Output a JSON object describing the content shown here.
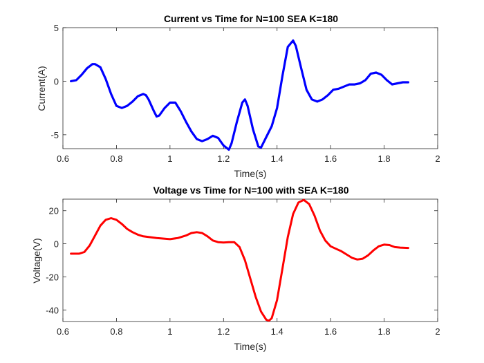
{
  "chart_data": [
    {
      "type": "line",
      "title": "Current vs Time for N=100 SEA K=180",
      "xlabel": "Time(s)",
      "ylabel": "Current(A)",
      "xlim": [
        0.6,
        2.0
      ],
      "ylim": [
        -6.3,
        5.0
      ],
      "xticks": [
        0.6,
        0.8,
        1.0,
        1.2,
        1.4,
        1.6,
        1.8,
        2.0
      ],
      "xtick_labels": [
        "0.6",
        "0.8",
        "1",
        "1.2",
        "1.4",
        "1.6",
        "1.8",
        "2"
      ],
      "yticks": [
        -5,
        0,
        5
      ],
      "ytick_labels": [
        "-5",
        "0",
        "5"
      ],
      "grid": false,
      "series": [
        {
          "color": "#0000ff",
          "x": [
            0.63,
            0.65,
            0.67,
            0.69,
            0.71,
            0.72,
            0.74,
            0.76,
            0.78,
            0.8,
            0.82,
            0.84,
            0.86,
            0.88,
            0.9,
            0.91,
            0.92,
            0.94,
            0.95,
            0.96,
            0.98,
            1.0,
            1.02,
            1.04,
            1.06,
            1.08,
            1.1,
            1.12,
            1.14,
            1.16,
            1.18,
            1.2,
            1.22,
            1.23,
            1.25,
            1.27,
            1.28,
            1.29,
            1.31,
            1.33,
            1.34,
            1.36,
            1.38,
            1.4,
            1.42,
            1.44,
            1.46,
            1.47,
            1.49,
            1.51,
            1.53,
            1.55,
            1.57,
            1.59,
            1.61,
            1.63,
            1.65,
            1.67,
            1.69,
            1.71,
            1.73,
            1.75,
            1.77,
            1.79,
            1.81,
            1.83,
            1.85,
            1.87,
            1.89
          ],
          "y": [
            0.0,
            0.1,
            0.6,
            1.2,
            1.6,
            1.6,
            1.3,
            0.2,
            -1.2,
            -2.3,
            -2.5,
            -2.3,
            -1.9,
            -1.4,
            -1.2,
            -1.3,
            -1.7,
            -2.8,
            -3.3,
            -3.2,
            -2.5,
            -2.0,
            -2.0,
            -2.8,
            -3.8,
            -4.7,
            -5.4,
            -5.6,
            -5.4,
            -5.1,
            -5.3,
            -6.0,
            -6.4,
            -5.8,
            -3.8,
            -2.0,
            -1.7,
            -2.3,
            -4.5,
            -6.1,
            -6.2,
            -5.2,
            -4.2,
            -2.5,
            0.5,
            3.2,
            3.8,
            3.3,
            1.2,
            -0.8,
            -1.7,
            -1.9,
            -1.7,
            -1.3,
            -0.8,
            -0.7,
            -0.5,
            -0.3,
            -0.3,
            -0.2,
            0.1,
            0.7,
            0.8,
            0.6,
            0.1,
            -0.3,
            -0.2,
            -0.1,
            -0.1
          ]
        }
      ]
    },
    {
      "type": "line",
      "title": "Voltage vs Time for N=100 with SEA K=180",
      "xlabel": "Time(s)",
      "ylabel": "Voltage(V)",
      "xlim": [
        0.6,
        2.0
      ],
      "ylim": [
        -47,
        27
      ],
      "xticks": [
        0.6,
        0.8,
        1.0,
        1.2,
        1.4,
        1.6,
        1.8,
        2.0
      ],
      "xtick_labels": [
        "0.6",
        "0.8",
        "1",
        "1.2",
        "1.4",
        "1.6",
        "1.8",
        "2"
      ],
      "yticks": [
        -40,
        -20,
        0,
        20
      ],
      "ytick_labels": [
        "-40",
        "-20",
        "0",
        "20"
      ],
      "grid": false,
      "series": [
        {
          "color": "#ff0000",
          "x": [
            0.63,
            0.66,
            0.68,
            0.7,
            0.72,
            0.74,
            0.76,
            0.78,
            0.8,
            0.82,
            0.84,
            0.86,
            0.88,
            0.9,
            0.95,
            1.0,
            1.03,
            1.06,
            1.08,
            1.1,
            1.12,
            1.14,
            1.16,
            1.18,
            1.2,
            1.22,
            1.24,
            1.26,
            1.28,
            1.3,
            1.32,
            1.34,
            1.36,
            1.37,
            1.38,
            1.4,
            1.42,
            1.44,
            1.46,
            1.48,
            1.5,
            1.52,
            1.54,
            1.56,
            1.58,
            1.6,
            1.62,
            1.64,
            1.66,
            1.68,
            1.7,
            1.72,
            1.74,
            1.76,
            1.78,
            1.8,
            1.82,
            1.84,
            1.86,
            1.89
          ],
          "y": [
            -6,
            -6,
            -5,
            -1,
            5,
            11,
            14.5,
            15.5,
            14.5,
            12,
            9,
            7,
            5.5,
            4.5,
            3.5,
            2.8,
            3.5,
            5,
            6.5,
            7,
            6.5,
            4.5,
            2,
            1,
            0.8,
            1,
            1,
            -2,
            -10,
            -21,
            -32,
            -41,
            -46,
            -46.5,
            -45,
            -34,
            -15,
            4,
            18,
            25,
            26.5,
            24,
            17,
            8,
            2,
            -1.5,
            -3,
            -4.5,
            -6.5,
            -8.5,
            -9.5,
            -9,
            -7,
            -4,
            -1.5,
            -0.5,
            -0.8,
            -2,
            -2.3,
            -2.5
          ]
        }
      ]
    }
  ]
}
